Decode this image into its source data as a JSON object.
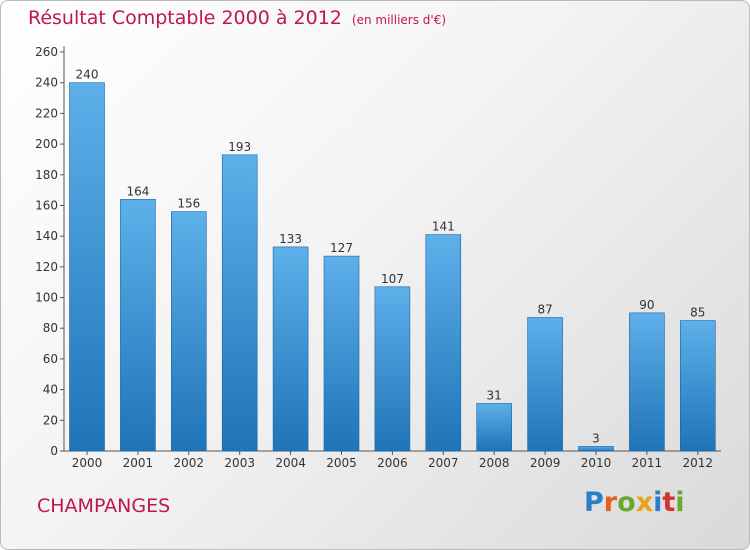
{
  "header": {
    "title": "Résultat Comptable 2000 à 2012",
    "subtitle": "(en milliers d'€)"
  },
  "footer": {
    "town": "CHAMPANGES",
    "brand": "Proxiti"
  },
  "colors": {
    "title": "#c0174b",
    "bar_light": "#5eb0ea",
    "bar_dark": "#1f74b8",
    "brand": [
      "#2a7fc4",
      "#e85d1f",
      "#6aa82f",
      "#e8a21b",
      "#2a7fc4",
      "#d6312f",
      "#6aa82f"
    ]
  },
  "chart_data": {
    "type": "bar",
    "categories": [
      "2000",
      "2001",
      "2002",
      "2003",
      "2004",
      "2005",
      "2006",
      "2007",
      "2008",
      "2009",
      "2010",
      "2011",
      "2012"
    ],
    "values": [
      240,
      164,
      156,
      193,
      133,
      127,
      107,
      141,
      31,
      87,
      3,
      90,
      85
    ],
    "ylim": [
      0,
      260
    ],
    "yticks": [
      0,
      20,
      40,
      60,
      80,
      100,
      120,
      140,
      160,
      180,
      200,
      220,
      240,
      260
    ],
    "grid": false,
    "data_labels": true
  }
}
